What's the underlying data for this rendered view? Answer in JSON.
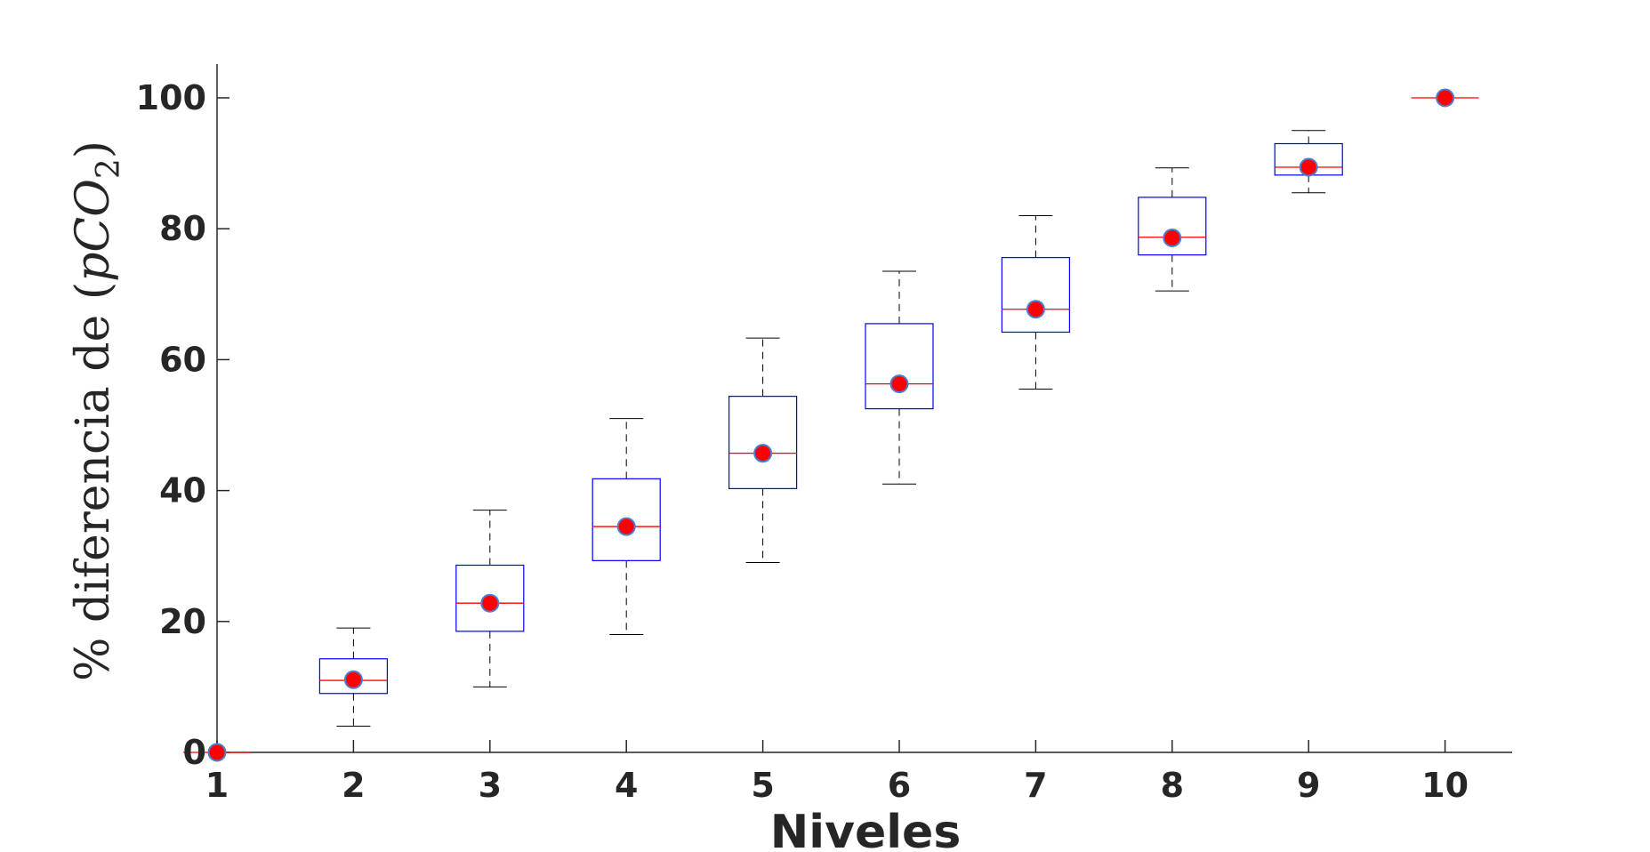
{
  "chart_data": {
    "type": "boxplot",
    "xlabel": "Niveles",
    "ylabel": {
      "prefix": "% diferencia de (",
      "var": "pCO",
      "subscript": "2",
      "suffix": ")"
    },
    "categories": [
      "1",
      "2",
      "3",
      "4",
      "5",
      "6",
      "7",
      "8",
      "9",
      "10"
    ],
    "ylim": [
      0,
      105
    ],
    "xlim": [
      1,
      10.5
    ],
    "yticks": [
      0,
      20,
      40,
      60,
      80,
      100
    ],
    "ytick_labels": [
      "0",
      "20",
      "40",
      "60",
      "80",
      "100"
    ],
    "grid": false,
    "boxes": [
      {
        "level": 1,
        "whisker_low": 0,
        "q1": 0,
        "median": 0,
        "q3": 0,
        "whisker_high": 0,
        "mean": 0
      },
      {
        "level": 2,
        "whisker_low": 4,
        "q1": 9,
        "median": 11,
        "q3": 14.3,
        "whisker_high": 19,
        "mean": 11.1
      },
      {
        "level": 3,
        "whisker_low": 10,
        "q1": 18.5,
        "median": 22.8,
        "q3": 28.6,
        "whisker_high": 37,
        "mean": 22.8
      },
      {
        "level": 4,
        "whisker_low": 18,
        "q1": 29.3,
        "median": 34.5,
        "q3": 41.8,
        "whisker_high": 51,
        "mean": 34.5
      },
      {
        "level": 5,
        "whisker_low": 29,
        "q1": 40.3,
        "median": 45.7,
        "q3": 54.4,
        "whisker_high": 63.3,
        "mean": 45.7
      },
      {
        "level": 6,
        "whisker_low": 41,
        "q1": 52.5,
        "median": 56.3,
        "q3": 65.5,
        "whisker_high": 73.5,
        "mean": 56.3
      },
      {
        "level": 7,
        "whisker_low": 55.5,
        "q1": 64.2,
        "median": 67.7,
        "q3": 75.6,
        "whisker_high": 82,
        "mean": 67.7
      },
      {
        "level": 8,
        "whisker_low": 70.5,
        "q1": 76,
        "median": 78.7,
        "q3": 84.8,
        "whisker_high": 89.3,
        "mean": 78.6
      },
      {
        "level": 9,
        "whisker_low": 85.5,
        "q1": 88.2,
        "median": 89.4,
        "q3": 93,
        "whisker_high": 95,
        "mean": 89.4
      },
      {
        "level": 10,
        "whisker_low": 100,
        "q1": 100,
        "median": 100,
        "q3": 100,
        "whisker_high": 100,
        "mean": 100
      }
    ],
    "colors": {
      "box": "#0000ff",
      "median": "#ff0000",
      "whisker": "#000000",
      "mean_fill": "#ff0000",
      "mean_edge": "#4a7fd4",
      "axis": "#262626"
    }
  }
}
